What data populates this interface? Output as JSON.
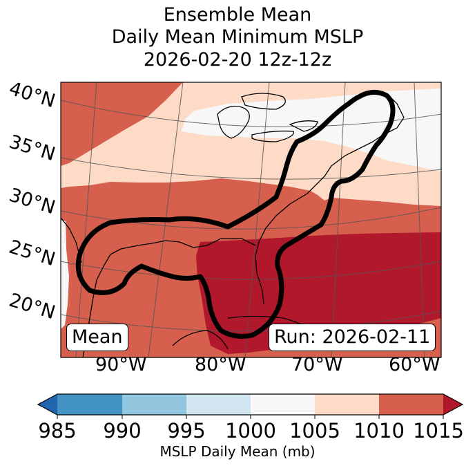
{
  "title": {
    "line1": "Ensemble Mean",
    "line2": "Daily Mean Minimum MSLP",
    "line3": "2026-02-20 12z-12z"
  },
  "lat_labels": [
    "40°N",
    "35°N",
    "30°N",
    "25°N",
    "20°N"
  ],
  "lon_labels": [
    "90°W",
    "80°W",
    "70°W",
    "60°W"
  ],
  "panel_labels": {
    "left": "Mean",
    "right": "Run: 2026-02-11"
  },
  "colorbar": {
    "ticks": [
      "985",
      "990",
      "995",
      "1000",
      "1005",
      "1010",
      "1015"
    ],
    "label": "MSLP Daily Mean (mb)",
    "colors": {
      "below": "#2166ac",
      "985-990": "#4393c3",
      "990-995": "#92c5de",
      "995-1000": "#d1e5f0",
      "1000-1005": "#f7f7f7",
      "1005-1010": "#fddbc7",
      "1010-1015": "#d6604d",
      "above": "#b2182b"
    }
  },
  "contour_color": "#000000"
}
